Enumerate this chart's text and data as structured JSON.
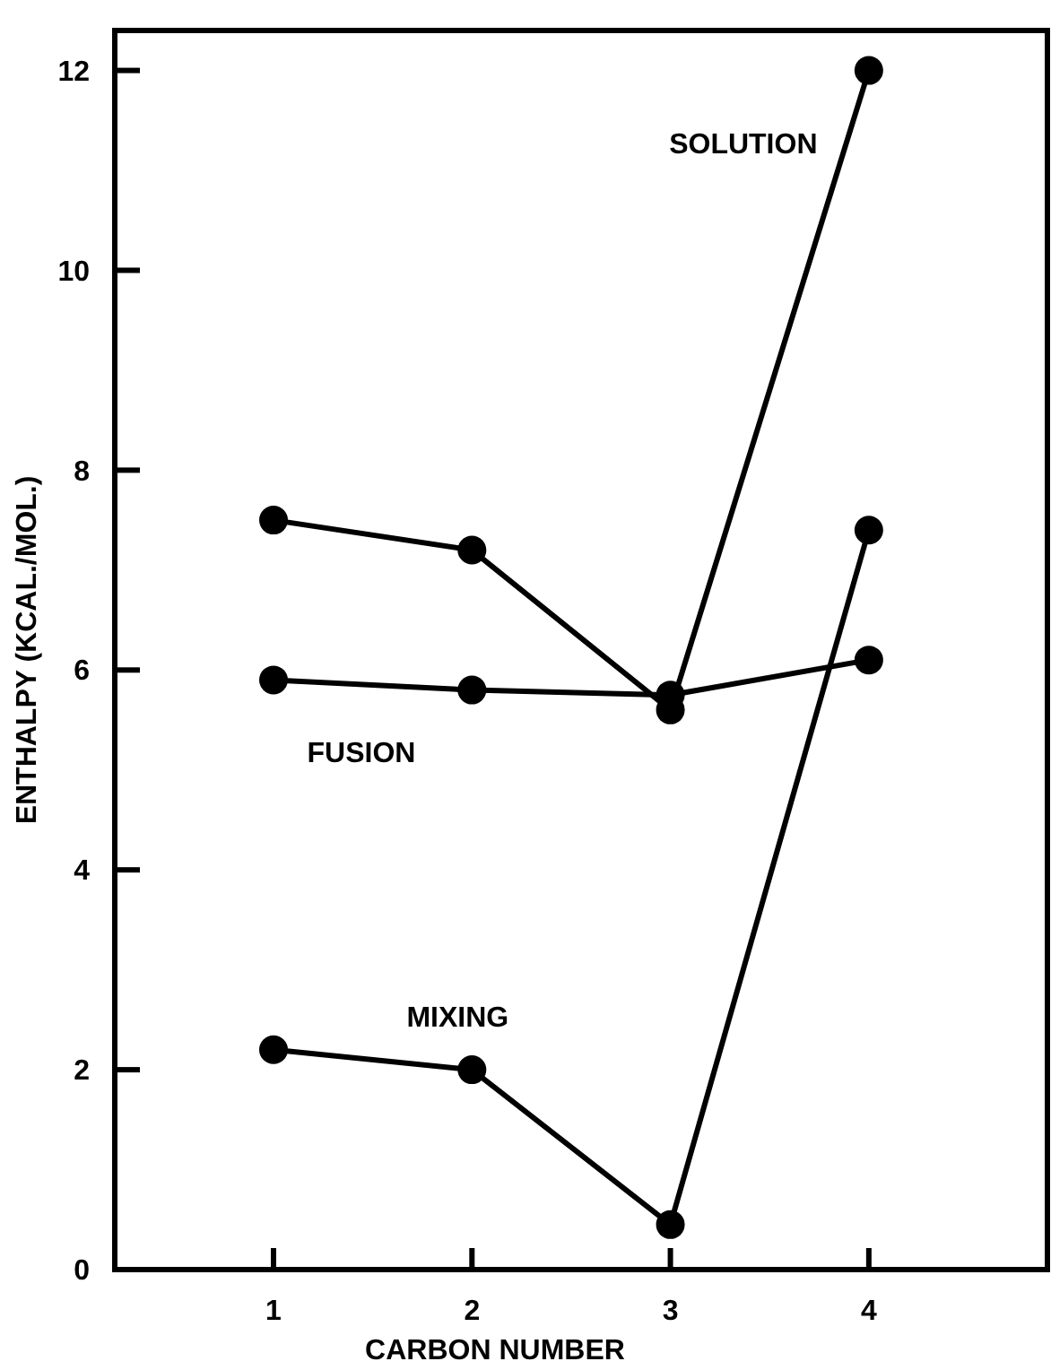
{
  "chart_data": {
    "type": "line",
    "xlabel": "CARBON NUMBER",
    "ylabel": "ENTHALPY (KCAL./MOL.)",
    "x": [
      1,
      2,
      3,
      4
    ],
    "xlim": [
      0.2,
      4.9
    ],
    "xticks": [
      1,
      2,
      3,
      4
    ],
    "ylim": [
      0,
      12.4
    ],
    "yticks": [
      0,
      2,
      4,
      6,
      8,
      10,
      12
    ],
    "marker": "circle",
    "line_style": "solid",
    "grid": false,
    "series": [
      {
        "name": "SOLUTION",
        "color": "#000000",
        "values": [
          7.5,
          7.2,
          5.6,
          12
        ]
      },
      {
        "name": "FUSION",
        "color": "#000000",
        "values": [
          5.9,
          5.8,
          5.75,
          6.1
        ]
      },
      {
        "name": "MIXING",
        "color": "#000000",
        "values": [
          2.2,
          2,
          0.45,
          7.4
        ]
      }
    ]
  }
}
